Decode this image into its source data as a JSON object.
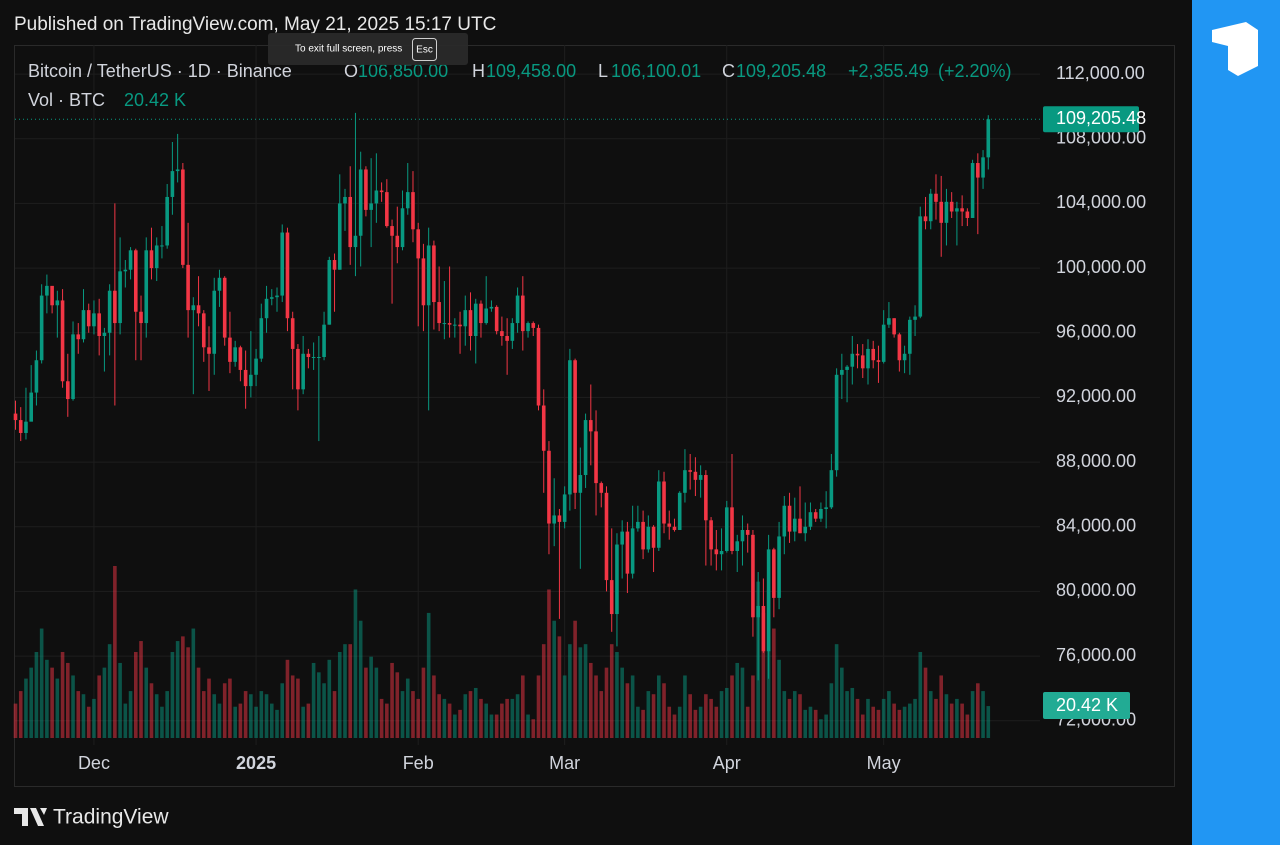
{
  "header": {
    "published": "Published on TradingView.com, May 21, 2025 15:17 UTC"
  },
  "fullscreen_hint": {
    "text": "To exit full screen, press",
    "key": "Esc"
  },
  "brand": "TradingView",
  "chart_data": {
    "type": "candlestick",
    "symbol": "Bitcoin / TetherUS · 1D · Binance",
    "legend_labels": [
      "O",
      "H",
      "L",
      "C"
    ],
    "legend_values": [
      106850,
      109458,
      106100.01,
      109205.48
    ],
    "legend_value_labels": [
      "106,850.00",
      "109,458.00",
      "106,100.01",
      "109,205.48"
    ],
    "change_values": [
      2355.49,
      2.2
    ],
    "change_value_labels": [
      "+2,355.49",
      "(+2.20%)"
    ],
    "volume_title": "Vol · BTC",
    "last_volume_label": "20.42 K",
    "up_color": "#089981",
    "down_color": "#f23645",
    "ylim": [
      70500,
      113800
    ],
    "yticks": [
      {
        "value": 72000,
        "label": "72,000.00"
      },
      {
        "value": 76000,
        "label": "76,000.00"
      },
      {
        "value": 80000,
        "label": "80,000.00"
      },
      {
        "value": 84000,
        "label": "84,000.00"
      },
      {
        "value": 88000,
        "label": "88,000.00"
      },
      {
        "value": 92000,
        "label": "92,000.00"
      },
      {
        "value": 96000,
        "label": "96,000.00"
      },
      {
        "value": 100000,
        "label": "100,000.00"
      },
      {
        "value": 104000,
        "label": "104,000.00"
      },
      {
        "value": 108000,
        "label": "108,000.00"
      },
      {
        "value": 112000,
        "label": "112,000.00"
      }
    ],
    "grid": true,
    "categories": [
      null,
      null,
      null,
      null,
      null,
      null,
      null,
      null,
      null,
      null,
      null,
      null,
      null,
      null,
      null,
      "Dec",
      null,
      null,
      null,
      null,
      null,
      null,
      null,
      null,
      null,
      null,
      null,
      null,
      null,
      null,
      null,
      null,
      null,
      null,
      null,
      null,
      null,
      null,
      null,
      null,
      null,
      null,
      null,
      null,
      null,
      null,
      "2025",
      null,
      null,
      null,
      null,
      null,
      null,
      null,
      null,
      null,
      null,
      null,
      null,
      null,
      null,
      null,
      null,
      null,
      null,
      null,
      null,
      null,
      null,
      null,
      null,
      null,
      null,
      null,
      null,
      null,
      null,
      "Feb",
      null,
      null,
      null,
      null,
      null,
      null,
      null,
      null,
      null,
      null,
      null,
      null,
      null,
      null,
      null,
      null,
      null,
      null,
      null,
      null,
      null,
      null,
      null,
      null,
      null,
      null,
      null,
      "Mar",
      null,
      null,
      null,
      null,
      null,
      null,
      null,
      null,
      null,
      null,
      null,
      null,
      null,
      null,
      null,
      null,
      null,
      null,
      null,
      null,
      null,
      null,
      null,
      null,
      null,
      null,
      null,
      null,
      null,
      null,
      "Apr",
      null,
      null,
      null,
      null,
      null,
      null,
      null,
      null,
      null,
      null,
      null,
      null,
      null,
      null,
      null,
      null,
      null,
      null,
      null,
      null,
      null,
      null,
      null,
      null,
      null,
      null,
      null,
      null,
      null,
      "May",
      null,
      null,
      null,
      null,
      null,
      null,
      null,
      null,
      null,
      null,
      null,
      null,
      null,
      null,
      null,
      null,
      null,
      null,
      null,
      null
    ],
    "open": [
      91000,
      90600,
      89800,
      90500,
      92300,
      94300,
      98300,
      98900,
      97700,
      98000,
      93000,
      91900,
      95900,
      95600,
      97400,
      96400,
      97200,
      95800,
      96000,
      98600,
      96600,
      99800,
      99900,
      101100,
      97300,
      96600,
      101100,
      100000,
      101400,
      101400,
      104400,
      106000,
      106100,
      100200,
      97400,
      97700,
      97200,
      95100,
      94700,
      98600,
      99400,
      95700,
      94200,
      95100,
      93700,
      92700,
      93400,
      94400,
      96900,
      98100,
      98200,
      98300,
      102200,
      96900,
      95000,
      92500,
      94700,
      94500,
      94500,
      94500,
      96500,
      100500,
      99900,
      104000,
      104400,
      101300,
      102000,
      106100,
      103600,
      104000,
      104800,
      104700,
      102600,
      102000,
      101300,
      103700,
      104700,
      102400,
      100600,
      97700,
      101400,
      97900,
      96600,
      96600,
      96500,
      96500,
      96400,
      97400,
      95800,
      97800,
      96600,
      97500,
      97600,
      96100,
      95800,
      95500,
      96600,
      98300,
      96100,
      96600,
      96300,
      91500,
      88700,
      84200,
      84700,
      84300,
      86000,
      94300,
      86100,
      87200,
      90600,
      89900,
      86700,
      86100,
      80700,
      78600,
      82900,
      83700,
      81100,
      83900,
      84300,
      82600,
      84000,
      82700,
      86800,
      84200,
      84000,
      83800,
      86100,
      87500,
      87400,
      86900,
      87200,
      84400,
      82600,
      82300,
      82500,
      85200,
      82500,
      83100,
      83800,
      83500,
      78400,
      79100,
      76300,
      82600,
      79600,
      83400,
      85300,
      83700,
      84500,
      83600,
      84000,
      84900,
      84500,
      85100,
      85200,
      87500,
      93400,
      93700,
      93900,
      94700,
      94600,
      93800,
      95000,
      94300,
      94200,
      96500,
      96900,
      95900,
      94300,
      94700,
      96800,
      97000,
      103200,
      102900,
      104600,
      104100,
      102800,
      104100,
      103500,
      103700,
      103500,
      103100,
      106500,
      105600,
      106850
    ],
    "high": [
      91800,
      91400,
      92600,
      94000,
      94900,
      99000,
      99600,
      98800,
      98600,
      98700,
      94700,
      96700,
      96600,
      98700,
      97800,
      98000,
      98100,
      96300,
      99000,
      104000,
      101900,
      100500,
      101300,
      101200,
      98300,
      101900,
      102500,
      101900,
      102600,
      105200,
      107800,
      108300,
      106500,
      102800,
      98200,
      99500,
      97400,
      96400,
      99400,
      99900,
      99500,
      97300,
      95500,
      95200,
      94900,
      96100,
      95000,
      97800,
      98900,
      98700,
      98800,
      102700,
      102500,
      97300,
      95300,
      95800,
      95000,
      95400,
      95800,
      97300,
      100700,
      100900,
      105800,
      104900,
      106300,
      109600,
      107200,
      106300,
      106800,
      107100,
      105300,
      105500,
      103000,
      103800,
      104800,
      106500,
      106000,
      102800,
      101500,
      102500,
      101700,
      100100,
      99200,
      100100,
      96900,
      97300,
      98300,
      98500,
      98100,
      98000,
      99500,
      98000,
      97700,
      97000,
      96900,
      96900,
      98800,
      99500,
      96700,
      96700,
      96500,
      92500,
      89300,
      87000,
      85100,
      86500,
      95000,
      94400,
      88900,
      91000,
      92800,
      91200,
      86800,
      86500,
      83900,
      83600,
      84400,
      84300,
      85300,
      85300,
      85000,
      84700,
      84100,
      87500,
      87400,
      85000,
      84500,
      86200,
      88800,
      88500,
      88300,
      87800,
      87500,
      84600,
      83800,
      83900,
      85600,
      88500,
      83500,
      84700,
      84200,
      83800,
      81200,
      80800,
      83500,
      82700,
      84300,
      85900,
      86100,
      85800,
      86500,
      85500,
      85500,
      85100,
      85500,
      86200,
      88500,
      93800,
      94700,
      94000,
      95800,
      95300,
      95300,
      95600,
      95500,
      95200,
      97400,
      97900,
      96900,
      96000,
      95200,
      97000,
      97700,
      103800,
      104400,
      104900,
      105800,
      105700,
      104900,
      104700,
      104100,
      104500,
      103700,
      106700,
      107100,
      107300,
      109458
    ],
    "low": [
      90000,
      89300,
      89400,
      90900,
      91500,
      94100,
      97200,
      97200,
      95700,
      92600,
      90800,
      91800,
      94700,
      95400,
      96000,
      95900,
      94600,
      93600,
      94600,
      91500,
      95900,
      98800,
      99300,
      94300,
      94300,
      95700,
      99300,
      99200,
      100600,
      101200,
      103300,
      105300,
      100000,
      95700,
      92200,
      96400,
      94200,
      92400,
      93400,
      97600,
      95200,
      93500,
      93900,
      93000,
      91300,
      92000,
      92700,
      94200,
      96000,
      97700,
      97300,
      97900,
      96100,
      92500,
      91200,
      92200,
      93800,
      93700,
      89300,
      94300,
      96500,
      97300,
      99900,
      102300,
      100200,
      99500,
      100100,
      103200,
      101300,
      102800,
      104100,
      102500,
      97800,
      100300,
      101100,
      103300,
      101600,
      96400,
      96100,
      91200,
      96200,
      96100,
      95600,
      95700,
      95700,
      94700,
      95200,
      94900,
      94100,
      95700,
      96500,
      97300,
      95900,
      95200,
      93400,
      95000,
      96000,
      94900,
      95700,
      95800,
      91200,
      86100,
      82300,
      82800,
      78300,
      83900,
      85000,
      85100,
      81400,
      86400,
      87800,
      84700,
      85200,
      80000,
      77500,
      76600,
      80800,
      79900,
      80800,
      83700,
      82000,
      82400,
      81200,
      82500,
      83600,
      83200,
      83700,
      83800,
      85500,
      86300,
      85900,
      85800,
      81600,
      81600,
      81300,
      81300,
      82400,
      82300,
      81200,
      81600,
      82400,
      77200,
      74500,
      76200,
      74600,
      78400,
      78900,
      82300,
      83000,
      83100,
      83600,
      83100,
      83800,
      84300,
      84300,
      83900,
      85100,
      87100,
      91900,
      91700,
      92800,
      93800,
      93200,
      92800,
      93800,
      92900,
      94100,
      96300,
      95700,
      93600,
      93500,
      93400,
      95800,
      96900,
      102400,
      102400,
      103000,
      100700,
      101400,
      103100,
      101400,
      102600,
      102600,
      103100,
      102100,
      104900,
      106100.01
    ],
    "close": [
      90600,
      89800,
      90500,
      92300,
      94300,
      98300,
      98900,
      97700,
      98000,
      93000,
      91900,
      95900,
      95600,
      97400,
      96400,
      97200,
      95800,
      96000,
      98600,
      96600,
      99800,
      99900,
      101100,
      97300,
      96600,
      101100,
      100000,
      101400,
      101400,
      104400,
      106000,
      106100,
      100200,
      97400,
      97700,
      97200,
      95100,
      94700,
      98600,
      99400,
      95700,
      94200,
      95100,
      93700,
      92700,
      93400,
      94400,
      96900,
      98100,
      98200,
      98300,
      102200,
      96900,
      95000,
      92500,
      94700,
      94500,
      94500,
      94500,
      96500,
      100500,
      99900,
      104000,
      104400,
      101300,
      102000,
      106100,
      103600,
      104000,
      104800,
      104700,
      102600,
      102000,
      101300,
      103700,
      104700,
      102400,
      100600,
      97700,
      101400,
      97900,
      96600,
      96600,
      96500,
      96500,
      96400,
      97400,
      95800,
      97800,
      96600,
      97500,
      97600,
      96100,
      95800,
      95500,
      96600,
      98300,
      96100,
      96600,
      96300,
      91500,
      88700,
      84200,
      84700,
      84300,
      86000,
      94300,
      86100,
      87200,
      90600,
      89900,
      86700,
      86100,
      80700,
      78600,
      82900,
      83700,
      81100,
      83900,
      84300,
      82600,
      84000,
      82700,
      86800,
      84200,
      84000,
      83800,
      86100,
      87500,
      87400,
      86900,
      87200,
      84400,
      82600,
      82300,
      82500,
      85200,
      82500,
      83100,
      83800,
      83500,
      78400,
      79100,
      76300,
      82600,
      79600,
      83400,
      85300,
      83700,
      84500,
      83600,
      84000,
      84900,
      84500,
      85100,
      85200,
      87500,
      93400,
      93700,
      93900,
      94700,
      94600,
      93800,
      95000,
      94300,
      94200,
      96500,
      96900,
      95900,
      94300,
      94700,
      96800,
      97000,
      103200,
      102900,
      104600,
      104100,
      102800,
      104100,
      103500,
      103700,
      103500,
      103100,
      106500,
      105600,
      106849.99,
      109205.48
    ],
    "volume": [
      22,
      30,
      38,
      45,
      55,
      70,
      50,
      45,
      38,
      55,
      48,
      40,
      30,
      28,
      20,
      25,
      40,
      45,
      60,
      110,
      48,
      22,
      30,
      55,
      62,
      45,
      35,
      28,
      20,
      30,
      55,
      62,
      65,
      58,
      70,
      45,
      30,
      38,
      28,
      22,
      35,
      38,
      20,
      22,
      30,
      28,
      20,
      30,
      28,
      22,
      18,
      35,
      50,
      40,
      38,
      20,
      22,
      48,
      42,
      35,
      50,
      30,
      55,
      60,
      60,
      95,
      75,
      45,
      52,
      45,
      25,
      22,
      48,
      42,
      30,
      38,
      30,
      25,
      45,
      80,
      40,
      28,
      25,
      22,
      15,
      18,
      28,
      30,
      32,
      25,
      22,
      15,
      15,
      22,
      25,
      25,
      28,
      40,
      15,
      12,
      40,
      60,
      95,
      75,
      65,
      40,
      60,
      75,
      58,
      60,
      48,
      40,
      30,
      45,
      60,
      55,
      45,
      35,
      40,
      20,
      18,
      30,
      28,
      40,
      35,
      20,
      15,
      20,
      40,
      28,
      18,
      20,
      28,
      25,
      20,
      30,
      32,
      40,
      48,
      45,
      20,
      40,
      100,
      80,
      95,
      70,
      50,
      30,
      25,
      30,
      28,
      18,
      20,
      18,
      12,
      15,
      35,
      60,
      45,
      30,
      32,
      25,
      15,
      25,
      20,
      18,
      25,
      30,
      22,
      18,
      20,
      22,
      25,
      55,
      45,
      30,
      25,
      40,
      28,
      22,
      25,
      22,
      15,
      30,
      35,
      30,
      20.42
    ]
  }
}
